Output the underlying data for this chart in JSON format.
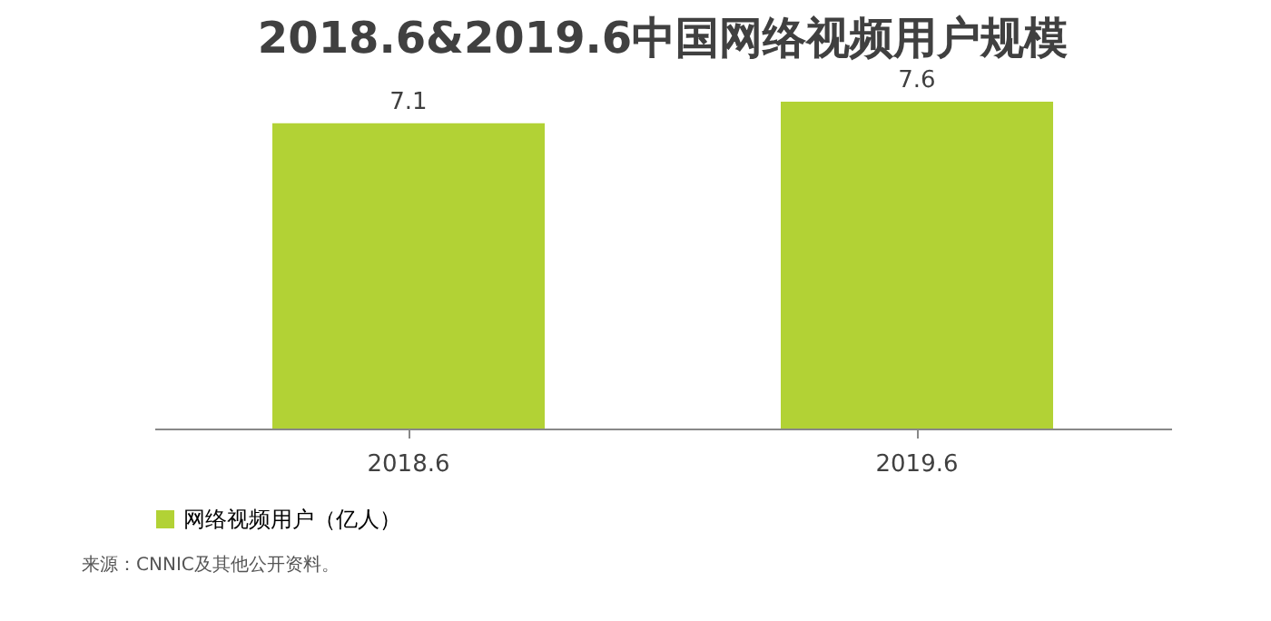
{
  "chart_data": {
    "type": "bar",
    "title": "2018.6&2019.6中国网络视频用户规模",
    "categories": [
      "2018.6",
      "2019.6"
    ],
    "series": [
      {
        "name": "网络视频用户（亿人）",
        "color": "#b2d235",
        "values": [
          7.1,
          7.6
        ]
      }
    ],
    "data_labels": true,
    "legend": "bottom",
    "grid": false,
    "annotations": [
      "来源：CNNIC及其他公开资料。"
    ]
  }
}
